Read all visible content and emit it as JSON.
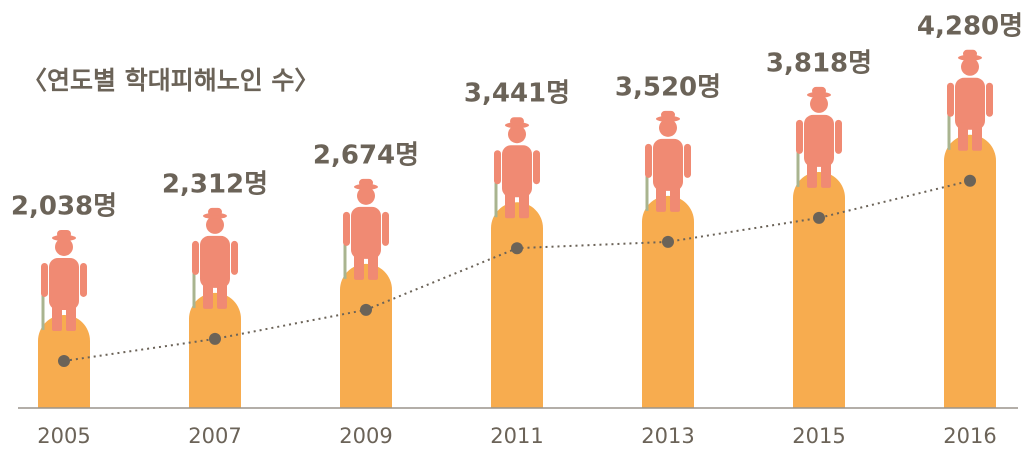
{
  "chart_data": {
    "type": "bar",
    "title": "〈연도별 학대피해노인 수〉",
    "categories": [
      "2005",
      "2007",
      "2009",
      "2011",
      "2013",
      "2015",
      "2016"
    ],
    "values": [
      2038,
      2312,
      2674,
      3441,
      3520,
      3818,
      4280
    ],
    "value_labels": [
      "2,038명",
      "2,312명",
      "2,674명",
      "3,441명",
      "3,520명",
      "3,818명",
      "4,280명"
    ],
    "color": "#f7ac4f",
    "line_color": "#6b6358",
    "ylim": [
      880,
      4800
    ]
  }
}
